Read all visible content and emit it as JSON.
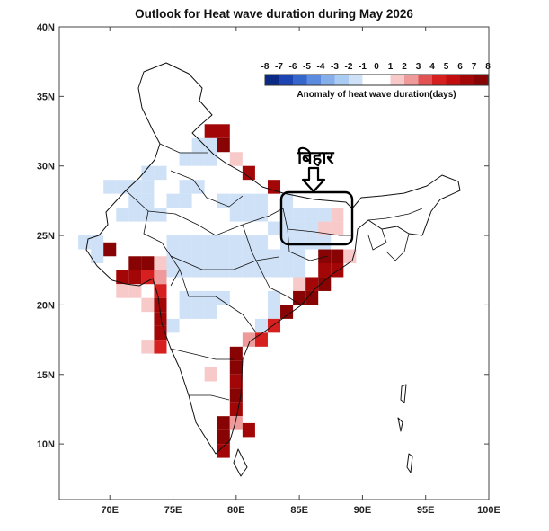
{
  "title": "Outlook for Heat wave duration during May 2026",
  "axes": {
    "x_ticks": [
      "70E",
      "75E",
      "80E",
      "85E",
      "90E",
      "95E",
      "100E"
    ],
    "y_ticks": [
      "10N",
      "15N",
      "20N",
      "25N",
      "30N",
      "35N",
      "40N"
    ],
    "x_range": [
      66,
      100
    ],
    "y_range": [
      6,
      40
    ]
  },
  "colorbar": {
    "ticks": [
      "-8",
      "-7",
      "-6",
      "-5",
      "-4",
      "-3",
      "-2",
      "-1",
      "0",
      "1",
      "2",
      "3",
      "4",
      "5",
      "6",
      "7",
      "8"
    ],
    "colors": [
      "#0b2a86",
      "#1d44b3",
      "#3566cc",
      "#5b8bde",
      "#86aeea",
      "#aacbf2",
      "#cfe1f7",
      "#ffffff",
      "#ffffff",
      "#f7c9c9",
      "#ef9a9a",
      "#e25252",
      "#d62020",
      "#c10d0d",
      "#a30606",
      "#880303"
    ],
    "label": "Anomaly of heat wave duration(days)"
  },
  "annotation": {
    "region_label": "बिहार"
  },
  "grid_cells": [
    {
      "lon": 77.0,
      "lat": 31.5,
      "v": -2
    },
    {
      "lon": 78.0,
      "lat": 31.5,
      "v": -2
    },
    {
      "lon": 76.0,
      "lat": 30.5,
      "v": -2
    },
    {
      "lon": 77.0,
      "lat": 30.5,
      "v": -2
    },
    {
      "lon": 78.0,
      "lat": 30.5,
      "v": -2
    },
    {
      "lon": 78.0,
      "lat": 32.5,
      "v": 7
    },
    {
      "lon": 79.0,
      "lat": 32.5,
      "v": 7
    },
    {
      "lon": 79.0,
      "lat": 31.5,
      "v": 8
    },
    {
      "lon": 80.0,
      "lat": 30.5,
      "v": 2
    },
    {
      "lon": 81.0,
      "lat": 29.5,
      "v": 7
    },
    {
      "lon": 83.0,
      "lat": 28.5,
      "v": 7
    },
    {
      "lon": 73.0,
      "lat": 29.5,
      "v": -2
    },
    {
      "lon": 74.0,
      "lat": 29.5,
      "v": -2
    },
    {
      "lon": 70.0,
      "lat": 28.5,
      "v": -2
    },
    {
      "lon": 71.0,
      "lat": 28.5,
      "v": -2
    },
    {
      "lon": 72.0,
      "lat": 28.5,
      "v": -2
    },
    {
      "lon": 73.0,
      "lat": 28.5,
      "v": -2
    },
    {
      "lon": 76.0,
      "lat": 28.5,
      "v": -2
    },
    {
      "lon": 77.0,
      "lat": 28.5,
      "v": -2
    },
    {
      "lon": 72.0,
      "lat": 27.5,
      "v": -2
    },
    {
      "lon": 73.0,
      "lat": 27.5,
      "v": -2
    },
    {
      "lon": 75.0,
      "lat": 27.5,
      "v": -2
    },
    {
      "lon": 76.0,
      "lat": 27.5,
      "v": -2
    },
    {
      "lon": 79.0,
      "lat": 27.5,
      "v": -2
    },
    {
      "lon": 80.0,
      "lat": 27.5,
      "v": -2
    },
    {
      "lon": 81.0,
      "lat": 27.5,
      "v": -2
    },
    {
      "lon": 82.0,
      "lat": 27.5,
      "v": -2
    },
    {
      "lon": 84.0,
      "lat": 27.5,
      "v": -2
    },
    {
      "lon": 71.0,
      "lat": 26.5,
      "v": -2
    },
    {
      "lon": 72.0,
      "lat": 26.5,
      "v": -2
    },
    {
      "lon": 73.0,
      "lat": 26.5,
      "v": -2
    },
    {
      "lon": 74.0,
      "lat": 26.5,
      "v": -2
    },
    {
      "lon": 80.0,
      "lat": 26.5,
      "v": -2
    },
    {
      "lon": 81.0,
      "lat": 26.5,
      "v": -2
    },
    {
      "lon": 82.0,
      "lat": 26.5,
      "v": -2
    },
    {
      "lon": 84.0,
      "lat": 26.5,
      "v": -2
    },
    {
      "lon": 85.0,
      "lat": 26.5,
      "v": -2
    },
    {
      "lon": 86.0,
      "lat": 26.5,
      "v": -2
    },
    {
      "lon": 87.0,
      "lat": 26.5,
      "v": -2
    },
    {
      "lon": 83.0,
      "lat": 25.5,
      "v": -2
    },
    {
      "lon": 84.0,
      "lat": 25.5,
      "v": -2
    },
    {
      "lon": 85.0,
      "lat": 25.5,
      "v": -2
    },
    {
      "lon": 86.0,
      "lat": 25.5,
      "v": -2
    },
    {
      "lon": 87.0,
      "lat": 25.5,
      "v": -2
    },
    {
      "lon": 87.0,
      "lat": 25.5,
      "v": 2
    },
    {
      "lon": 88.0,
      "lat": 25.5,
      "v": 2
    },
    {
      "lon": 88.0,
      "lat": 26.5,
      "v": 2
    },
    {
      "lon": 84.0,
      "lat": 24.5,
      "v": -2
    },
    {
      "lon": 85.0,
      "lat": 24.5,
      "v": -2
    },
    {
      "lon": 86.0,
      "lat": 24.5,
      "v": -2
    },
    {
      "lon": 87.0,
      "lat": 24.5,
      "v": -2
    },
    {
      "lon": 68.0,
      "lat": 24.5,
      "v": -2
    },
    {
      "lon": 69.0,
      "lat": 24.5,
      "v": -2
    },
    {
      "lon": 69.0,
      "lat": 23.5,
      "v": -2
    },
    {
      "lon": 70.0,
      "lat": 24.0,
      "v": 8
    },
    {
      "lon": 75.0,
      "lat": 24.5,
      "v": -2
    },
    {
      "lon": 76.0,
      "lat": 24.5,
      "v": -2
    },
    {
      "lon": 77.0,
      "lat": 24.5,
      "v": -2
    },
    {
      "lon": 78.0,
      "lat": 24.5,
      "v": -2
    },
    {
      "lon": 79.0,
      "lat": 24.5,
      "v": -2
    },
    {
      "lon": 80.0,
      "lat": 24.5,
      "v": -2
    },
    {
      "lon": 81.0,
      "lat": 24.5,
      "v": -2
    },
    {
      "lon": 82.0,
      "lat": 24.5,
      "v": -2
    },
    {
      "lon": 75.0,
      "lat": 23.5,
      "v": -2
    },
    {
      "lon": 76.0,
      "lat": 23.5,
      "v": -2
    },
    {
      "lon": 77.0,
      "lat": 23.5,
      "v": -2
    },
    {
      "lon": 78.0,
      "lat": 23.5,
      "v": -2
    },
    {
      "lon": 79.0,
      "lat": 23.5,
      "v": -2
    },
    {
      "lon": 80.0,
      "lat": 23.5,
      "v": -2
    },
    {
      "lon": 81.0,
      "lat": 23.5,
      "v": -2
    },
    {
      "lon": 82.0,
      "lat": 23.5,
      "v": -2
    },
    {
      "lon": 83.0,
      "lat": 23.5,
      "v": -2
    },
    {
      "lon": 84.0,
      "lat": 23.5,
      "v": -2
    },
    {
      "lon": 85.0,
      "lat": 23.5,
      "v": -2
    },
    {
      "lon": 75.0,
      "lat": 22.5,
      "v": -2
    },
    {
      "lon": 76.0,
      "lat": 22.5,
      "v": -2
    },
    {
      "lon": 77.0,
      "lat": 22.5,
      "v": -2
    },
    {
      "lon": 78.0,
      "lat": 22.5,
      "v": -2
    },
    {
      "lon": 79.0,
      "lat": 22.5,
      "v": -2
    },
    {
      "lon": 80.0,
      "lat": 22.5,
      "v": -2
    },
    {
      "lon": 81.0,
      "lat": 22.5,
      "v": -2
    },
    {
      "lon": 82.0,
      "lat": 22.5,
      "v": -2
    },
    {
      "lon": 83.0,
      "lat": 22.5,
      "v": -2
    },
    {
      "lon": 84.0,
      "lat": 22.5,
      "v": -2
    },
    {
      "lon": 85.0,
      "lat": 22.5,
      "v": -2
    },
    {
      "lon": 72.0,
      "lat": 23.0,
      "v": 8
    },
    {
      "lon": 73.0,
      "lat": 23.0,
      "v": 8
    },
    {
      "lon": 74.0,
      "lat": 23.0,
      "v": 2
    },
    {
      "lon": 71.0,
      "lat": 22.0,
      "v": 7
    },
    {
      "lon": 72.0,
      "lat": 22.0,
      "v": 7
    },
    {
      "lon": 73.0,
      "lat": 22.0,
      "v": 5
    },
    {
      "lon": 74.0,
      "lat": 22.0,
      "v": 3
    },
    {
      "lon": 71.0,
      "lat": 21.0,
      "v": 2
    },
    {
      "lon": 72.0,
      "lat": 21.0,
      "v": 2
    },
    {
      "lon": 74.0,
      "lat": 21.0,
      "v": 5
    },
    {
      "lon": 73.0,
      "lat": 20.0,
      "v": 2
    },
    {
      "lon": 74.0,
      "lat": 20.0,
      "v": 7
    },
    {
      "lon": 74.0,
      "lat": 19.0,
      "v": 7
    },
    {
      "lon": 74.0,
      "lat": 18.0,
      "v": 7
    },
    {
      "lon": 73.0,
      "lat": 17.0,
      "v": 2
    },
    {
      "lon": 74.0,
      "lat": 17.0,
      "v": 5
    },
    {
      "lon": 76.0,
      "lat": 20.5,
      "v": -2
    },
    {
      "lon": 77.0,
      "lat": 20.5,
      "v": -2
    },
    {
      "lon": 78.0,
      "lat": 20.5,
      "v": -2
    },
    {
      "lon": 79.0,
      "lat": 20.5,
      "v": -2
    },
    {
      "lon": 76.0,
      "lat": 19.5,
      "v": -2
    },
    {
      "lon": 77.0,
      "lat": 19.5,
      "v": -2
    },
    {
      "lon": 78.0,
      "lat": 19.5,
      "v": -2
    },
    {
      "lon": 75.0,
      "lat": 18.5,
      "v": -2
    },
    {
      "lon": 83.0,
      "lat": 20.5,
      "v": -2
    },
    {
      "lon": 84.0,
      "lat": 19.5,
      "v": -2
    },
    {
      "lon": 83.0,
      "lat": 19.5,
      "v": -2
    },
    {
      "lon": 82.0,
      "lat": 18.5,
      "v": -2
    },
    {
      "lon": 85.0,
      "lat": 21.5,
      "v": 2
    },
    {
      "lon": 85.0,
      "lat": 20.5,
      "v": 8
    },
    {
      "lon": 86.0,
      "lat": 20.5,
      "v": 8
    },
    {
      "lon": 86.0,
      "lat": 21.5,
      "v": 7
    },
    {
      "lon": 87.0,
      "lat": 21.5,
      "v": 8
    },
    {
      "lon": 87.0,
      "lat": 22.5,
      "v": 7
    },
    {
      "lon": 88.0,
      "lat": 22.5,
      "v": 7
    },
    {
      "lon": 87.0,
      "lat": 23.5,
      "v": 8
    },
    {
      "lon": 88.0,
      "lat": 23.5,
      "v": 8
    },
    {
      "lon": 89.0,
      "lat": 23.5,
      "v": 2
    },
    {
      "lon": 84.0,
      "lat": 19.5,
      "v": 8
    },
    {
      "lon": 83.0,
      "lat": 18.5,
      "v": 5
    },
    {
      "lon": 82.0,
      "lat": 17.5,
      "v": 5
    },
    {
      "lon": 81.0,
      "lat": 17.5,
      "v": 3
    },
    {
      "lon": 80.0,
      "lat": 16.5,
      "v": 8
    },
    {
      "lon": 80.0,
      "lat": 15.5,
      "v": 8
    },
    {
      "lon": 80.0,
      "lat": 14.5,
      "v": 7
    },
    {
      "lon": 80.0,
      "lat": 13.5,
      "v": 8
    },
    {
      "lon": 80.0,
      "lat": 12.5,
      "v": 7
    },
    {
      "lon": 79.0,
      "lat": 11.5,
      "v": 8
    },
    {
      "lon": 80.0,
      "lat": 11.5,
      "v": 3
    },
    {
      "lon": 79.0,
      "lat": 10.5,
      "v": 8
    },
    {
      "lon": 79.0,
      "lat": 9.5,
      "v": 7
    },
    {
      "lon": 78.0,
      "lat": 15.0,
      "v": 2
    },
    {
      "lon": 81.0,
      "lat": 11.0,
      "v": 7
    }
  ]
}
